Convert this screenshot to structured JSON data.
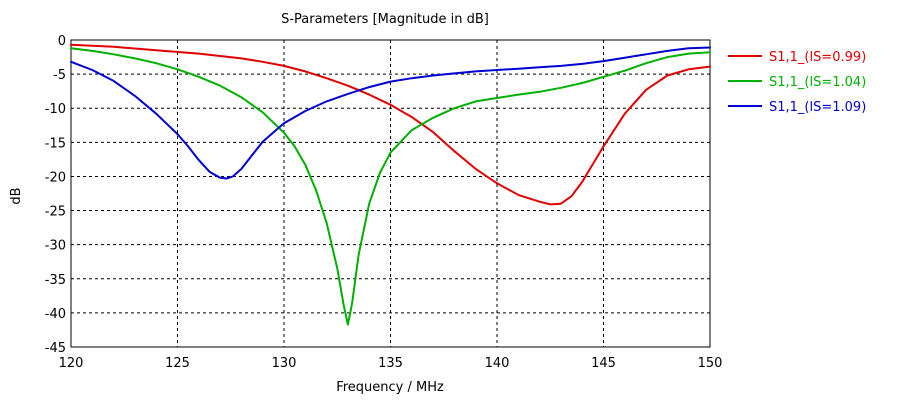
{
  "chart_data": {
    "type": "line",
    "title": "S-Parameters [Magnitude in dB]",
    "xlabel": "Frequency / MHz",
    "ylabel": "dB",
    "xlim": [
      120,
      150
    ],
    "ylim": [
      -45,
      0
    ],
    "xticks": [
      120,
      125,
      130,
      135,
      140,
      145,
      150
    ],
    "yticks": [
      0,
      -5,
      -10,
      -15,
      -20,
      -25,
      -30,
      -35,
      -40,
      -45
    ],
    "grid": true,
    "legend_position": "right",
    "series": [
      {
        "name": "S1,1_(lS=0.99)",
        "color": "#e00000",
        "x": [
          120,
          122,
          124,
          126,
          128,
          129,
          130,
          131,
          132,
          133,
          134,
          135,
          136,
          137,
          138,
          139,
          140,
          141,
          142,
          142.5,
          143,
          143.5,
          144,
          145,
          146,
          147,
          148,
          149,
          150
        ],
        "y": [
          -0.7,
          -1.0,
          -1.5,
          -2.0,
          -2.7,
          -3.2,
          -3.8,
          -4.6,
          -5.6,
          -6.7,
          -8.0,
          -9.5,
          -11.3,
          -13.5,
          -16.3,
          -18.9,
          -21.0,
          -22.7,
          -23.7,
          -24.1,
          -24.0,
          -22.9,
          -20.8,
          -15.6,
          -10.8,
          -7.3,
          -5.2,
          -4.3,
          -3.9
        ]
      },
      {
        "name": "S1,1_(lS=1.04)",
        "color": "#00b000",
        "x": [
          120,
          121,
          122,
          123,
          124,
          125,
          126,
          127,
          128,
          129,
          130,
          130.5,
          131,
          131.5,
          132,
          132.5,
          132.8,
          133,
          133.2,
          133.5,
          134,
          134.5,
          135,
          136,
          137,
          138,
          139,
          140,
          141,
          142,
          143,
          144,
          145,
          146,
          147,
          148,
          149,
          150
        ],
        "y": [
          -1.2,
          -1.6,
          -2.1,
          -2.7,
          -3.4,
          -4.3,
          -5.4,
          -6.7,
          -8.4,
          -10.6,
          -13.6,
          -15.6,
          -18.3,
          -22.0,
          -26.8,
          -33.5,
          -38.8,
          -41.7,
          -38.5,
          -31.5,
          -24.0,
          -19.5,
          -16.5,
          -13.2,
          -11.4,
          -10.0,
          -9.0,
          -8.5,
          -8.0,
          -7.6,
          -7.0,
          -6.3,
          -5.4,
          -4.5,
          -3.4,
          -2.5,
          -2.0,
          -1.8
        ]
      },
      {
        "name": "S1,1_(lS=1.09)",
        "color": "#0000d0",
        "x": [
          120,
          121,
          122,
          123,
          124,
          125,
          125.5,
          126,
          126.5,
          127,
          127.3,
          127.6,
          128,
          128.5,
          129,
          130,
          131,
          132,
          133,
          134,
          135,
          136,
          137,
          138,
          139,
          140,
          141,
          142,
          143,
          144,
          145,
          146,
          147,
          148,
          149,
          150
        ],
        "y": [
          -3.2,
          -4.4,
          -6.0,
          -8.2,
          -10.8,
          -13.8,
          -15.6,
          -17.6,
          -19.3,
          -20.2,
          -20.3,
          -20.0,
          -18.9,
          -16.9,
          -14.9,
          -12.2,
          -10.4,
          -9.0,
          -7.9,
          -6.9,
          -6.1,
          -5.6,
          -5.2,
          -4.9,
          -4.6,
          -4.4,
          -4.2,
          -4.0,
          -3.8,
          -3.5,
          -3.1,
          -2.6,
          -2.1,
          -1.6,
          -1.2,
          -1.1
        ]
      }
    ]
  }
}
